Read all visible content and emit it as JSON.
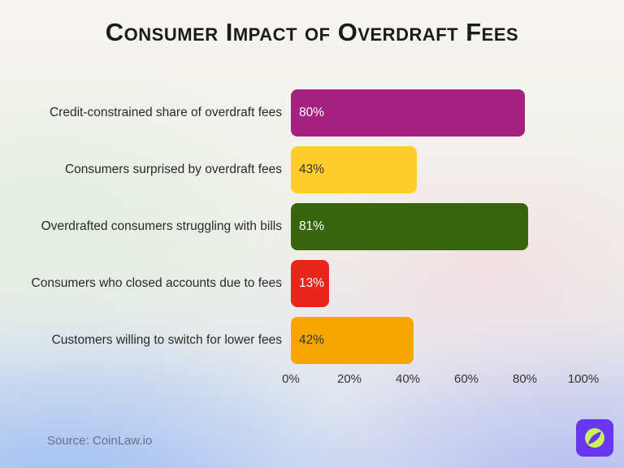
{
  "page": {
    "title_label": "Consumer Impact of Overdraft Fees",
    "source_label": "Source: CoinLaw.io"
  },
  "chart_data": {
    "type": "bar",
    "orientation": "horizontal",
    "title": "Consumer Impact of Overdraft Fees",
    "categories": [
      "Credit-constrained share of overdraft fees",
      "Consumers surprised by overdraft fees",
      "Overdrafted consumers struggling with bills",
      "Consumers who closed accounts due to fees",
      "Customers willing to switch for lower fees"
    ],
    "values": [
      80,
      43,
      81,
      13,
      42
    ],
    "value_labels": [
      "80%",
      "43%",
      "81%",
      "13%",
      "42%"
    ],
    "bar_colors": [
      "#A5217F",
      "#FFCE2B",
      "#3A650F",
      "#E8261C",
      "#F7A600"
    ],
    "value_label_colors": [
      "#FFFFFF",
      "#333333",
      "#FFFFFF",
      "#FFFFFF",
      "#333333"
    ],
    "xlabel": "",
    "ylabel": "",
    "xlim": [
      0,
      100
    ],
    "x_ticks": [
      {
        "value": 0,
        "label": "0%"
      },
      {
        "value": 20,
        "label": "20%"
      },
      {
        "value": 40,
        "label": "40%"
      },
      {
        "value": 60,
        "label": "60%"
      },
      {
        "value": 80,
        "label": "80%"
      },
      {
        "value": 100,
        "label": "100%"
      }
    ],
    "grid": false,
    "legend": false
  },
  "branding": {
    "logo_name": "coinlaw-logo",
    "logo_bg_color": "#6936F0",
    "logo_circle_color": "#C9F15C"
  }
}
